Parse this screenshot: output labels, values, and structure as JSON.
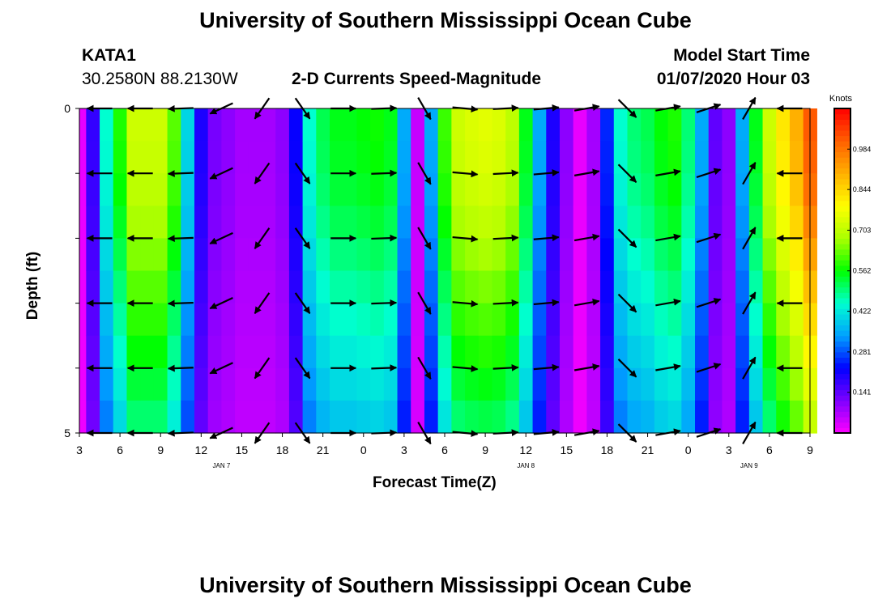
{
  "page": {
    "title_top": "University of Southern Mississippi Ocean Cube",
    "title_bottom": "University of Southern Mississippi Ocean Cube",
    "station_id": "KATA1",
    "station_coords": "30.2580N 88.2130W",
    "plot_title": "2-D Currents Speed-Magnitude",
    "model_start_label": "Model Start Time",
    "model_start_value": "01/07/2020 Hour 03"
  },
  "chart_data": {
    "type": "heatmap",
    "title": "2-D Currents Speed-Magnitude",
    "xlabel": "Forecast Time(Z)",
    "ylabel": "Depth (ft)",
    "x_tick_labels": [
      "3",
      "6",
      "9",
      "12",
      "15",
      "18",
      "21",
      "0",
      "3",
      "6",
      "9",
      "12",
      "15",
      "18",
      "21",
      "0",
      "3",
      "6",
      "9"
    ],
    "x_day_labels": [
      {
        "label": "JAN 7",
        "tick_index": 3.5
      },
      {
        "label": "JAN 8",
        "tick_index": 11
      },
      {
        "label": "JAN 9",
        "tick_index": 16.5
      }
    ],
    "y_tick_labels": [
      {
        "label": "0",
        "depth": 0
      },
      {
        "label": "5",
        "depth": 5
      }
    ],
    "depth_range": [
      0,
      5
    ],
    "y_tick_depths": [
      0,
      1,
      2,
      3,
      4,
      5
    ],
    "colorbar": {
      "unit_label": "Knots",
      "range": [
        0,
        1.125
      ],
      "tick_labels": [
        "0.141",
        "0.281",
        "0.422",
        "0.562",
        "0.703",
        "0.844",
        "0.984"
      ],
      "tick_values": [
        0.141,
        0.281,
        0.422,
        0.562,
        0.703,
        0.844,
        0.984
      ],
      "colors": [
        "#ff00ff",
        "#7f00ff",
        "#0000ff",
        "#00a0ff",
        "#00ffd0",
        "#00ff00",
        "#aaff00",
        "#ffff00",
        "#ffb000",
        "#ff6000",
        "#ff0000"
      ]
    },
    "hours": [
      3,
      4,
      5,
      6,
      7,
      8,
      9,
      10,
      11,
      12,
      13,
      14,
      15,
      16,
      17,
      18,
      19,
      20,
      21,
      22,
      23,
      24,
      25,
      26,
      27,
      28,
      29,
      30,
      31,
      32,
      33,
      34,
      35,
      36,
      37,
      38,
      39,
      40,
      41,
      42,
      43,
      44,
      45,
      46,
      47,
      48,
      49,
      50,
      51,
      52,
      53,
      54,
      55,
      56,
      57
    ],
    "speed_profile": [
      0.02,
      0.18,
      0.45,
      0.58,
      0.72,
      0.72,
      0.72,
      0.62,
      0.4,
      0.2,
      0.12,
      0.1,
      0.08,
      0.08,
      0.08,
      0.1,
      0.22,
      0.45,
      0.52,
      0.55,
      0.55,
      0.56,
      0.57,
      0.55,
      0.35,
      0.05,
      0.35,
      0.6,
      0.72,
      0.74,
      0.75,
      0.74,
      0.7,
      0.55,
      0.35,
      0.2,
      0.1,
      0.02,
      0.08,
      0.25,
      0.45,
      0.5,
      0.52,
      0.56,
      0.58,
      0.5,
      0.35,
      0.14,
      0.1,
      0.35,
      0.55,
      0.72,
      0.82,
      0.9,
      1.02
    ],
    "depth_factor": [
      1.0,
      0.99,
      0.97,
      0.94,
      0.9,
      0.86,
      0.82,
      0.78,
      0.74,
      0.7
    ],
    "arrows": {
      "hours": [
        4.5,
        7.5,
        10.5,
        13.5,
        16.5,
        19.5,
        22.5,
        25.5,
        28.5,
        31.5,
        34.5,
        37.5,
        40.5,
        43.5,
        46.5,
        49.5,
        52.5,
        55.5
      ],
      "directions_deg": [
        180,
        180,
        182,
        205,
        235,
        305,
        0,
        2,
        300,
        355,
        3,
        5,
        10,
        315,
        10,
        18,
        60,
        180
      ],
      "note": "direction in degrees, 0 = toward increasing time (east), 90 = up"
    }
  }
}
